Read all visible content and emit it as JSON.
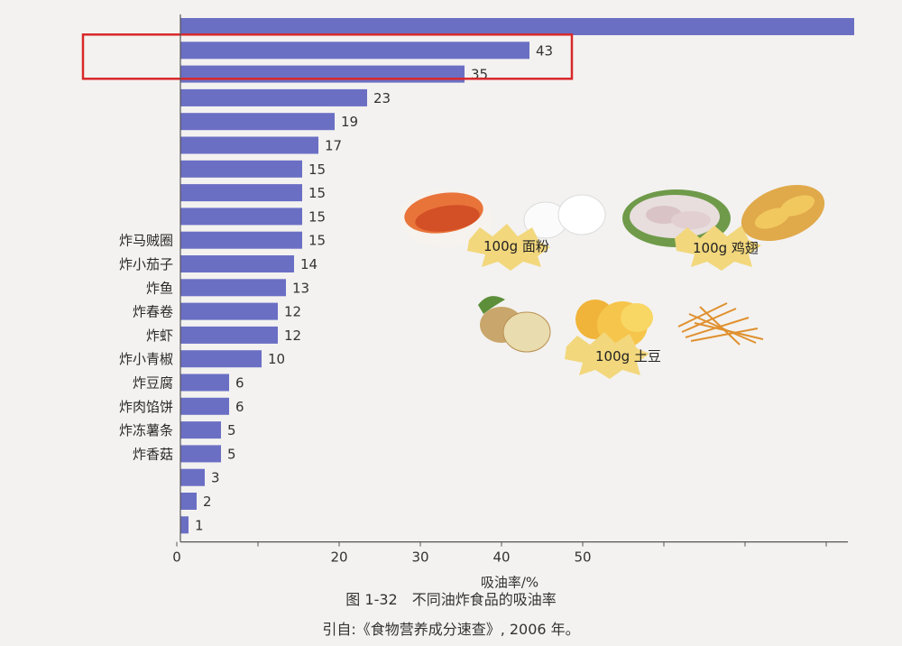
{
  "chart_data": {
    "type": "bar",
    "orientation": "horizontal",
    "categories": [
      "",
      "",
      "",
      "",
      "",
      "",
      "",
      "",
      "",
      "炸马贼圈",
      "炸小茄子",
      "炸鱼",
      "炸春卷",
      "炸虾",
      "炸小青椒",
      "炸豆腐",
      "炸肉馅饼",
      "炸冻薯条",
      "炸香菇",
      "",
      "",
      ""
    ],
    "values": [
      83,
      43,
      35,
      23,
      19,
      17,
      15,
      15,
      15,
      15,
      14,
      13,
      12,
      12,
      10,
      6,
      6,
      5,
      5,
      3,
      2,
      1
    ],
    "value_labels": [
      "",
      "43",
      "35",
      "23",
      "19",
      "17",
      "15",
      "15",
      "15",
      "15",
      "14",
      "13",
      "12",
      "12",
      "10",
      "6",
      "6",
      "5",
      "5",
      "3",
      "2",
      "1"
    ],
    "xlim": [
      0,
      82
    ],
    "xticks": [
      "0",
      "",
      "20",
      "30",
      "40",
      "50",
      "",
      "",
      ""
    ],
    "xtick_values": [
      0,
      10,
      20,
      30,
      40,
      50,
      60,
      70,
      80
    ],
    "xlabel": "吸油率/%",
    "bar_color": "#6b6fc4",
    "highlight_index": 1,
    "highlight_color": "#d8282a",
    "grid": false
  },
  "caption": {
    "title": "图 1-32　不同油炸食品的吸油率",
    "source": "引自:《食物营养成分速查》, 2006 年。"
  },
  "illustrations": [
    {
      "label": "100g 面粉"
    },
    {
      "label": "100g 鸡翅"
    },
    {
      "label": "100g 土豆"
    }
  ]
}
